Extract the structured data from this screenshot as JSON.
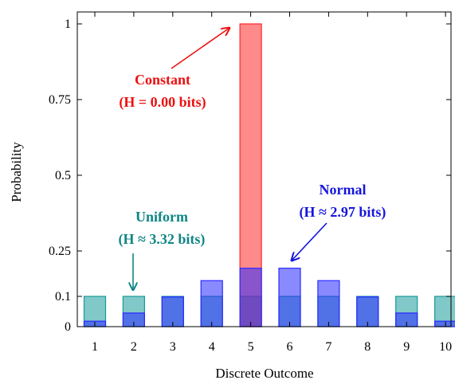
{
  "chart_data": {
    "type": "bar",
    "xlabel": "Discrete Outcome",
    "ylabel": "Probability",
    "ylim": [
      0,
      1.05
    ],
    "grid": false,
    "categories": [
      "1",
      "2",
      "3",
      "4",
      "5",
      "6",
      "7",
      "8",
      "9",
      "10"
    ],
    "y_ticks": [
      {
        "value": 0,
        "label": "0"
      },
      {
        "value": 0.1,
        "label": "0.1"
      },
      {
        "value": 0.25,
        "label": "0.25"
      },
      {
        "value": 0.5,
        "label": "0.5"
      },
      {
        "value": 0.75,
        "label": "0.75"
      },
      {
        "value": 1,
        "label": "1"
      }
    ],
    "series": [
      {
        "key": "uniform",
        "color": "#1a9a9a",
        "opacity": 0.55,
        "values": [
          0.1,
          0.1,
          0.1,
          0.1,
          0.1,
          0.1,
          0.1,
          0.1,
          0.1,
          0.1
        ]
      },
      {
        "key": "constant",
        "color": "#ff2a2a",
        "opacity": 0.55,
        "values": [
          0,
          0,
          0,
          0,
          1,
          0,
          0,
          0,
          0,
          0
        ]
      },
      {
        "key": "normal",
        "color": "#2a2aff",
        "opacity": 0.55,
        "values": [
          0.018,
          0.045,
          0.098,
          0.152,
          0.193,
          0.193,
          0.152,
          0.098,
          0.045,
          0.018
        ]
      }
    ],
    "annotations": [
      {
        "key": "constant",
        "line1": "Constant",
        "line2": "(H = 0.00 bits)",
        "color": "#ee1111",
        "target_category": "5",
        "target_value": 1
      },
      {
        "key": "normal",
        "line1": "Normal",
        "line2": "(H ≈ 2.97 bits)",
        "color": "#1515dd",
        "target_category": "6",
        "target_value": 0.2
      },
      {
        "key": "uniform",
        "line1": "Uniform",
        "line2": "(H ≈ 3.32 bits)",
        "color": "#108585",
        "target_category": "2",
        "target_value": 0.1
      }
    ]
  }
}
